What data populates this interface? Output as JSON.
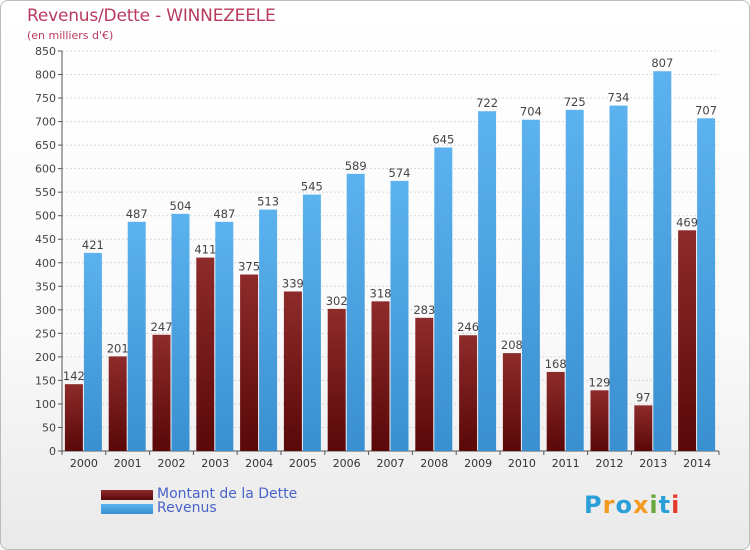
{
  "title": "Revenus/Dette - WINNEZEELE",
  "subtitle": "(en milliers d'€)",
  "logo": {
    "letters": [
      "P",
      "r",
      "o",
      "x",
      "i",
      "t",
      "i"
    ],
    "colors": [
      "#2a9fd8",
      "#f29a1f",
      "#2a9fd8",
      "#f29a1f",
      "#6aa83b",
      "#2a9fd8",
      "#e53b2c"
    ]
  },
  "chart_data": {
    "type": "bar",
    "categories": [
      "2000",
      "2001",
      "2002",
      "2003",
      "2004",
      "2005",
      "2006",
      "2007",
      "2008",
      "2009",
      "2010",
      "2011",
      "2012",
      "2013",
      "2014"
    ],
    "series": [
      {
        "name": "Montant de la Dette",
        "color": "#7b1a1a",
        "values": [
          142,
          201,
          247,
          411,
          375,
          339,
          302,
          318,
          283,
          246,
          208,
          168,
          129,
          97,
          469
        ]
      },
      {
        "name": "Revenus",
        "color": "#4ea6e6",
        "values": [
          421,
          487,
          504,
          487,
          513,
          545,
          589,
          574,
          645,
          722,
          704,
          725,
          734,
          807,
          707
        ]
      }
    ],
    "ylim": [
      0,
      850
    ],
    "yticks": [
      0,
      50,
      100,
      150,
      200,
      250,
      300,
      350,
      400,
      450,
      500,
      550,
      600,
      650,
      700,
      750,
      800,
      850
    ],
    "grid": true,
    "legend_position": "bottom-left"
  }
}
